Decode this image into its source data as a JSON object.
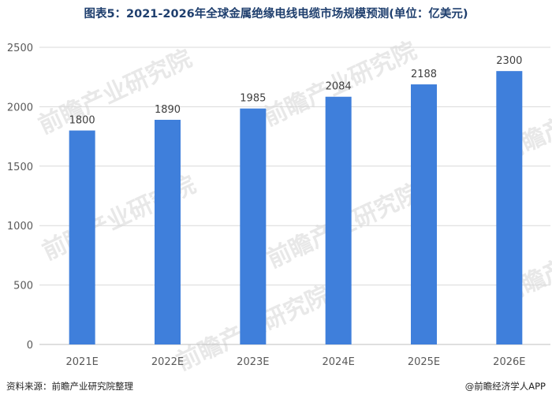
{
  "title": "图表5：2021-2026年全球金属绝缘电线电缆市场规模预测(单位：亿美元)",
  "source": "资料来源：前瞻产业研究院整理",
  "credit": "@前瞻经济学人APP",
  "watermark": "前瞻产业研究院",
  "colors": {
    "bar": "#3f7fdb",
    "grid": "#d9d9d9",
    "axis": "#bfbfbf",
    "tick_text": "#595959",
    "label_text": "#404040"
  },
  "chart_data": {
    "type": "bar",
    "title": "图表5：2021-2026年全球金属绝缘电线电缆市场规模预测(单位：亿美元)",
    "categories": [
      "2021E",
      "2022E",
      "2023E",
      "2024E",
      "2025E",
      "2026E"
    ],
    "values": [
      1800,
      1890,
      1985,
      2084,
      2188,
      2300
    ],
    "ylim": [
      0,
      2500
    ],
    "yticks": [
      0,
      500,
      1000,
      1500,
      2000,
      2500
    ],
    "grid": true,
    "legend": "none"
  }
}
